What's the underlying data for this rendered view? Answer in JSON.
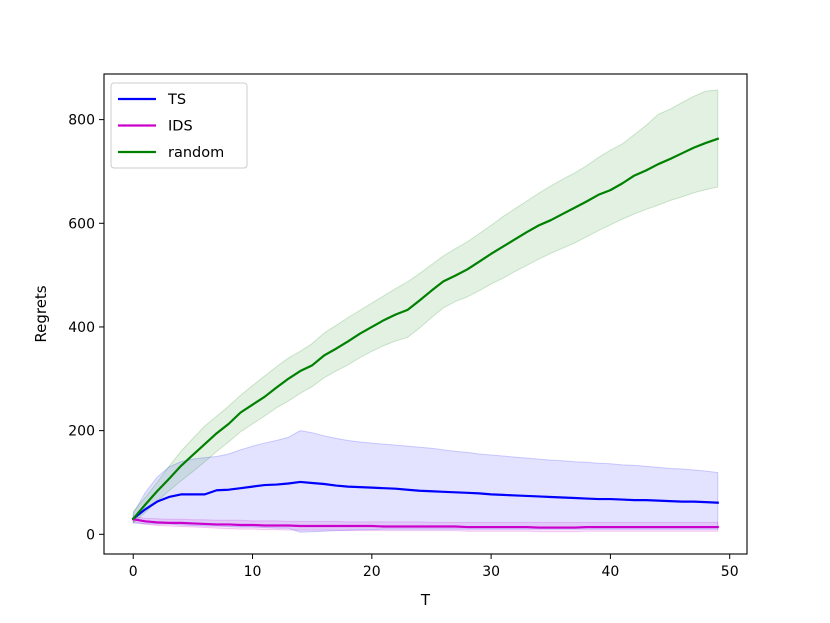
{
  "chart_data": {
    "type": "line",
    "xlabel": "T",
    "ylabel": "Regrets",
    "xlim": [
      -2.45,
      51.45
    ],
    "ylim": [
      -38,
      888
    ],
    "x_ticks": [
      0,
      10,
      20,
      30,
      40,
      50
    ],
    "y_ticks": [
      0,
      200,
      400,
      600,
      800
    ],
    "grid": false,
    "legend_position": "top-left",
    "x": [
      0,
      1,
      2,
      3,
      4,
      5,
      6,
      7,
      8,
      9,
      10,
      11,
      12,
      13,
      14,
      15,
      16,
      17,
      18,
      19,
      20,
      21,
      22,
      23,
      24,
      25,
      26,
      27,
      28,
      29,
      30,
      31,
      32,
      33,
      34,
      35,
      36,
      37,
      38,
      39,
      40,
      41,
      42,
      43,
      44,
      45,
      46,
      47,
      48,
      49
    ],
    "series": [
      {
        "name": "TS",
        "color": "#0000ff",
        "values": [
          30,
          48,
          63,
          72,
          77,
          77,
          77,
          85,
          86,
          89,
          92,
          95,
          96,
          98,
          101,
          99,
          97,
          94,
          92,
          91,
          90,
          89,
          88,
          86,
          84,
          83,
          82,
          81,
          80,
          79,
          77,
          76,
          75,
          74,
          73,
          72,
          71,
          70,
          69,
          68,
          68,
          67,
          66,
          66,
          65,
          64,
          63,
          63,
          62,
          61
        ],
        "band_upper": [
          40,
          80,
          110,
          130,
          140,
          145,
          148,
          150,
          155,
          163,
          170,
          176,
          181,
          187,
          200,
          196,
          190,
          185,
          181,
          178,
          176,
          174,
          172,
          170,
          168,
          166,
          163,
          160,
          158,
          155,
          153,
          151,
          149,
          147,
          145,
          143,
          142,
          140,
          139,
          137,
          136,
          134,
          133,
          131,
          129,
          127,
          126,
          124,
          122,
          119
        ],
        "band_lower": [
          22,
          20,
          20,
          20,
          18,
          17,
          16,
          16,
          15,
          14,
          14,
          13,
          12,
          12,
          4,
          5,
          6,
          7,
          8,
          9,
          9,
          10,
          10,
          10,
          10,
          10,
          10,
          10,
          10,
          10,
          10,
          10,
          10,
          10,
          10,
          10,
          10,
          10,
          10,
          10,
          10,
          10,
          10,
          10,
          10,
          10,
          10,
          10,
          10,
          10
        ]
      },
      {
        "name": "IDS",
        "color": "#cc00cc",
        "values": [
          29,
          25,
          23,
          22,
          22,
          21,
          20,
          19,
          19,
          18,
          18,
          17,
          17,
          17,
          16,
          16,
          16,
          16,
          16,
          16,
          16,
          15,
          15,
          15,
          15,
          15,
          15,
          15,
          14,
          14,
          14,
          14,
          14,
          14,
          13,
          13,
          13,
          13,
          14,
          14,
          14,
          14,
          14,
          14,
          14,
          14,
          14,
          14,
          14,
          14
        ],
        "band_upper": [
          34,
          31,
          30,
          29,
          29,
          28,
          28,
          27,
          27,
          27,
          26,
          26,
          26,
          25,
          25,
          25,
          25,
          25,
          24,
          24,
          24,
          24,
          24,
          24,
          24,
          23,
          23,
          23,
          23,
          23,
          23,
          23,
          23,
          23,
          23,
          23,
          23,
          23,
          23,
          23,
          23,
          23,
          23,
          23,
          23,
          23,
          23,
          23,
          23,
          23
        ],
        "band_lower": [
          24,
          20,
          17,
          16,
          15,
          14,
          13,
          12,
          11,
          10,
          10,
          9,
          9,
          8,
          8,
          8,
          8,
          8,
          7,
          7,
          7,
          7,
          7,
          7,
          7,
          7,
          7,
          7,
          6,
          6,
          6,
          6,
          6,
          6,
          5,
          5,
          5,
          5,
          6,
          6,
          6,
          6,
          6,
          6,
          6,
          6,
          6,
          6,
          6,
          6
        ]
      },
      {
        "name": "random",
        "color": "#008000",
        "values": [
          30,
          57,
          83,
          107,
          132,
          153,
          174,
          195,
          213,
          235,
          250,
          265,
          283,
          300,
          315,
          326,
          345,
          358,
          372,
          387,
          400,
          413,
          424,
          433,
          451,
          470,
          488,
          499,
          511,
          526,
          541,
          555,
          569,
          583,
          596,
          606,
          618,
          630,
          642,
          655,
          664,
          677,
          692,
          702,
          714,
          724,
          735,
          746,
          755,
          763
        ],
        "band_upper": [
          44,
          71,
          100,
          131,
          160,
          185,
          209,
          228,
          247,
          268,
          287,
          305,
          323,
          340,
          353,
          368,
          388,
          403,
          418,
          432,
          446,
          460,
          474,
          487,
          503,
          520,
          537,
          551,
          564,
          580,
          596,
          613,
          628,
          643,
          658,
          672,
          685,
          697,
          711,
          727,
          741,
          753,
          771,
          789,
          810,
          820,
          833,
          845,
          855,
          857
        ],
        "band_lower": [
          22,
          42,
          64,
          84,
          103,
          121,
          140,
          160,
          178,
          198,
          213,
          228,
          244,
          257,
          272,
          285,
          302,
          315,
          327,
          341,
          353,
          364,
          373,
          380,
          398,
          418,
          437,
          449,
          458,
          470,
          483,
          494,
          507,
          519,
          531,
          542,
          552,
          562,
          574,
          586,
          597,
          608,
          618,
          627,
          635,
          644,
          651,
          659,
          665,
          670
        ]
      }
    ]
  }
}
